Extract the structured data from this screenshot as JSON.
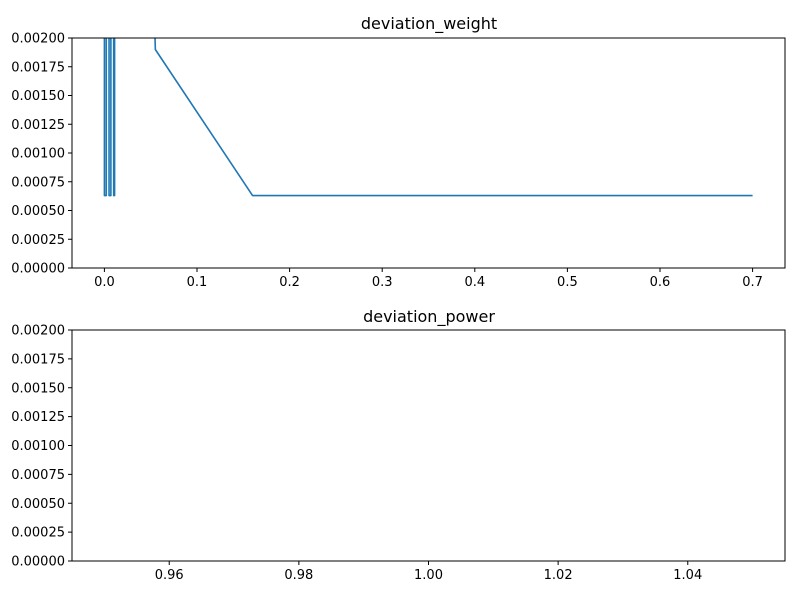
{
  "chart_data": [
    {
      "type": "line",
      "title": "deviation_weight",
      "xlabel": "",
      "ylabel": "",
      "xlim": [
        -0.035,
        0.735
      ],
      "ylim": [
        0,
        0.002
      ],
      "grid": false,
      "x_ticks": [
        "0.0",
        "0.1",
        "0.2",
        "0.3",
        "0.4",
        "0.5",
        "0.6",
        "0.7"
      ],
      "y_ticks": [
        "0.00000",
        "0.00025",
        "0.00050",
        "0.00075",
        "0.00100",
        "0.00125",
        "0.00150",
        "0.00175",
        "0.00200"
      ],
      "series": [
        {
          "color": "#1f77b4",
          "x": [
            0.0,
            0.0,
            0.002,
            0.002,
            0.005,
            0.005,
            0.007,
            0.007,
            0.01,
            0.01,
            0.011,
            0.011,
            0.053,
            0.055,
            0.16,
            0.7
          ],
          "y": [
            0.0025,
            0.00063,
            0.00063,
            0.0025,
            0.0025,
            0.00063,
            0.00063,
            0.0025,
            0.0025,
            0.00063,
            0.00063,
            0.0025,
            0.0025,
            0.0019,
            0.00063,
            0.00063
          ]
        }
      ]
    },
    {
      "type": "line",
      "title": "deviation_power",
      "xlabel": "",
      "ylabel": "",
      "xlim": [
        0.945,
        1.055
      ],
      "ylim": [
        0,
        0.002
      ],
      "grid": false,
      "x_ticks": [
        "0.96",
        "0.98",
        "1.00",
        "1.02",
        "1.04"
      ],
      "y_ticks": [
        "0.00000",
        "0.00025",
        "0.00050",
        "0.00075",
        "0.00100",
        "0.00125",
        "0.00150",
        "0.00175",
        "0.00200"
      ],
      "series": []
    }
  ]
}
